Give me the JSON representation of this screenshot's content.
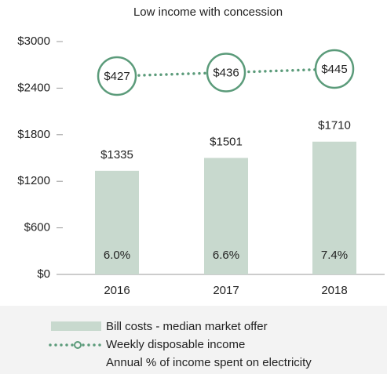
{
  "chart_data": {
    "type": "bar",
    "title": "Low income with concession",
    "categories": [
      "2016",
      "2017",
      "2018"
    ],
    "series": [
      {
        "name": "Bill costs - median market offer",
        "color": "#c8d9ce",
        "values": [
          1335,
          1501,
          1710
        ],
        "value_labels": [
          "$1335",
          "$1501",
          "$1710"
        ]
      },
      {
        "name": "Weekly disposable income",
        "type": "line",
        "color": "#5b9b7a",
        "values": [
          427,
          436,
          445
        ],
        "value_labels": [
          "$427",
          "$436",
          "$445"
        ]
      },
      {
        "name": "Annual % of income spent on electricity",
        "values": [
          6.0,
          6.6,
          7.4
        ],
        "value_labels": [
          "6.0%",
          "6.6%",
          "7.4%"
        ]
      }
    ],
    "ylim": [
      0,
      3000
    ],
    "yticks": [
      {
        "value": 0,
        "label": "$0"
      },
      {
        "value": 600,
        "label": "$600"
      },
      {
        "value": 1200,
        "label": "$1200"
      },
      {
        "value": 1800,
        "label": "$1800"
      },
      {
        "value": 2400,
        "label": "$2400"
      },
      {
        "value": 3000,
        "label": "$3000"
      }
    ]
  }
}
